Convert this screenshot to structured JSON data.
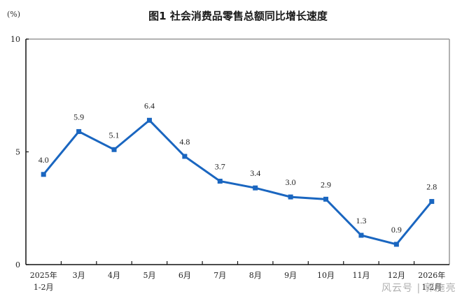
{
  "header": {
    "unit": "(%)",
    "title": "图1  社会消费品零售总额同比增长速度"
  },
  "watermark": "风云号 | 郭施亮",
  "colors": {
    "line": "#1a66c0",
    "axis": "#111111",
    "frame": "#999999"
  },
  "chart_data": {
    "type": "line",
    "title": "图1  社会消费品零售总额同比增长速度",
    "ylabel": "(%)",
    "xlabel": "",
    "ylim": [
      0,
      10
    ],
    "yticks": [
      0,
      5,
      10
    ],
    "grid": false,
    "legend": null,
    "categories": [
      "2025年\n1-2月",
      "3月",
      "4月",
      "5月",
      "6月",
      "7月",
      "8月",
      "9月",
      "10月",
      "11月",
      "12月",
      "2026年\n1-2月"
    ],
    "series": [
      {
        "name": "社会消费品零售总额同比增长速度",
        "values": [
          4.0,
          5.9,
          5.1,
          6.4,
          4.8,
          3.7,
          3.4,
          3.0,
          2.9,
          1.3,
          0.9,
          2.8
        ],
        "labels": [
          "4.0",
          "5.9",
          "5.1",
          "6.4",
          "4.8",
          "3.7",
          "3.4",
          "3.0",
          "2.9",
          "1.3",
          "0.9",
          "2.8"
        ]
      }
    ]
  }
}
